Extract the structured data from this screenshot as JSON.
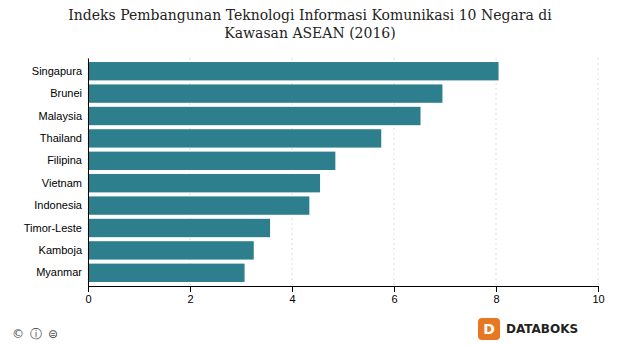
{
  "chart_data": {
    "type": "bar",
    "orientation": "horizontal",
    "title": "Indeks Pembangunan Teknologi Informasi Komunikasi 10 Negara di\nKawasan ASEAN (2016)",
    "categories": [
      "Singapura",
      "Brunei",
      "Malaysia",
      "Thailand",
      "Filipina",
      "Vietnam",
      "Indonesia",
      "Timor-Leste",
      "Kamboja",
      "Myanmar"
    ],
    "values": [
      8.05,
      6.95,
      6.52,
      5.75,
      4.85,
      4.55,
      4.34,
      3.57,
      3.25,
      3.07
    ],
    "color": "#2e7f8e",
    "xlim": [
      0,
      10
    ],
    "xticks": [
      0,
      2,
      4,
      6,
      8,
      10
    ],
    "grid": true,
    "annotations": [
      "©",
      "ⓘ",
      "⊜",
      "D",
      "DATABOKS"
    ]
  }
}
